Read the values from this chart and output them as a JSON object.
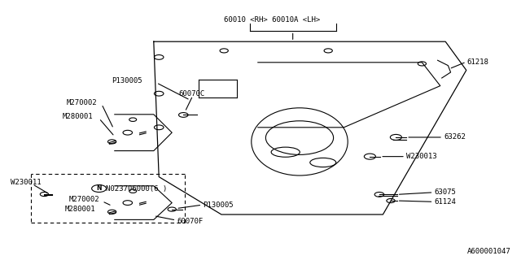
{
  "bg_color": "#ffffff",
  "line_color": "#000000",
  "figure_id": "A600001047",
  "font_size": 6.5,
  "line_width": 0.8,
  "labels": {
    "part_main": "60010 <RH> 60010A <LH>",
    "p61218": "61218",
    "p130005_upper": "P130005",
    "p60070c": "60070C",
    "m270002_upper": "M270002",
    "m280001_upper": "M280001",
    "p63262": "63262",
    "w230013": "W230013",
    "w230011": "W230011",
    "n023706": "N023706000(6 )",
    "m270002_lower": "M270002",
    "m280001_lower": "M280001",
    "p130005_lower": "P130005",
    "p60070f": "60070F",
    "p63075": "63075",
    "p61124": "61124"
  }
}
